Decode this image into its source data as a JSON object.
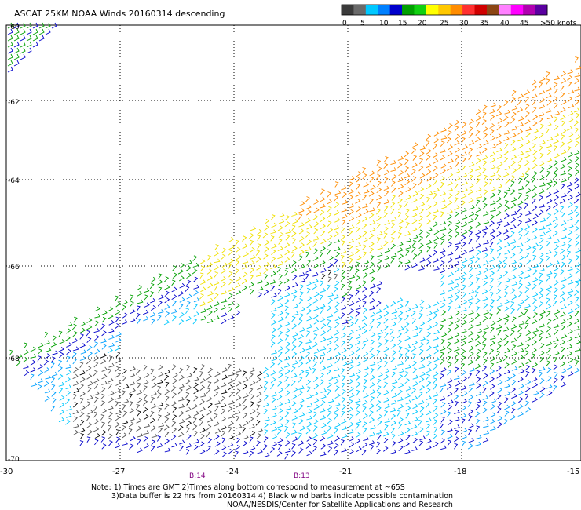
{
  "title": "ASCAT 25KM NOAA Winds 20160314 descending",
  "colorbar": {
    "colors": [
      "#3a3a3a",
      "#6a6a6a",
      "#00c8ff",
      "#0080ff",
      "#0000cc",
      "#00a000",
      "#10d010",
      "#ffff00",
      "#ffc800",
      "#ff8c00",
      "#ff3030",
      "#d00000",
      "#8b4513",
      "#ff80ff",
      "#ff00ff",
      "#b000b0",
      "#5a00a0"
    ],
    "labels": [
      "0",
      "5",
      "10",
      "15",
      "20",
      "25",
      "30",
      "35",
      "40",
      "45",
      ">50 knots"
    ]
  },
  "lat_labels": [
    "-60",
    "-62",
    "-64",
    "-66",
    "-68",
    "-70"
  ],
  "lon_labels": [
    "-30",
    "-27",
    "-24",
    "-21",
    "-18",
    "-15"
  ],
  "time_markers": [
    "B:14",
    "B:13"
  ],
  "notes": [
    "Note: 1) Times are GMT 2)Times along bottom correspond to measurement at ~65S",
    "3)Data buffer is 22 hrs from 20160314 4) Black wind barbs indicate possible contamination",
    "NOAA/NESDIS/Center for Satellite Applications and Research"
  ],
  "wind_legend_colors": {
    "black": "#000000",
    "grey": "#555555",
    "cyan": "#00c8ff",
    "lightblue": "#00a0ff",
    "blue": "#0000cc",
    "green": "#00a000",
    "yellow": "#f0e000",
    "orange": "#ff8c00"
  }
}
